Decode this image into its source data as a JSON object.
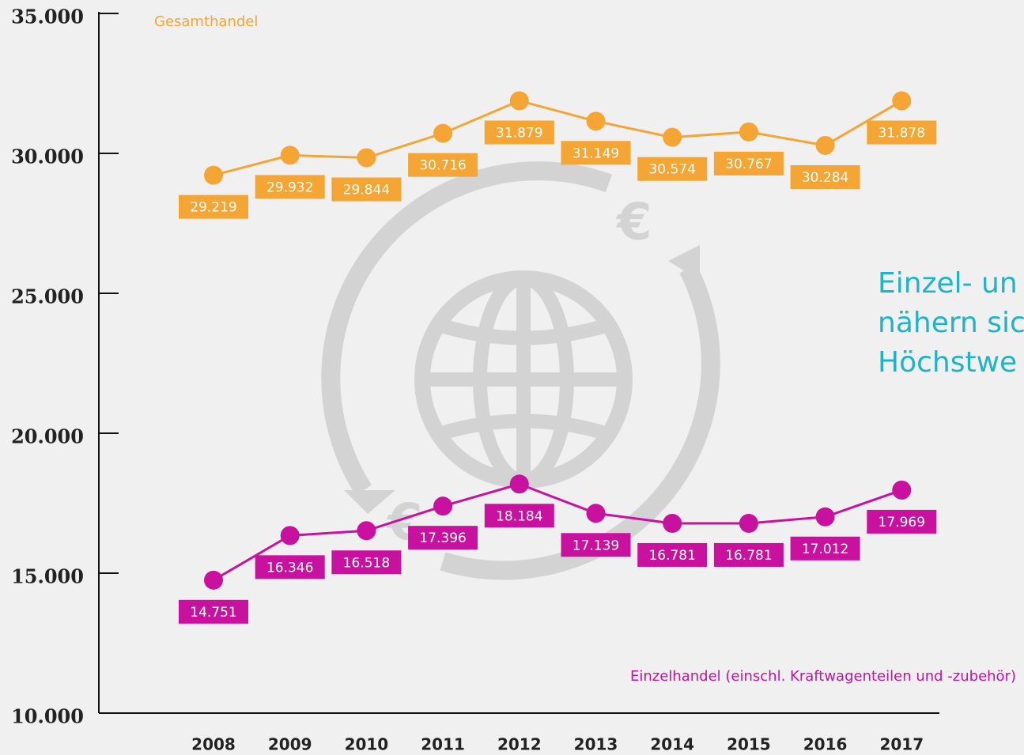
{
  "chart_data": {
    "type": "line",
    "categories": [
      "2008",
      "2009",
      "2010",
      "2011",
      "2012",
      "2013",
      "2014",
      "2015",
      "2016",
      "2017"
    ],
    "series": [
      {
        "name": "Gesamthandel",
        "color": "#f5a533",
        "values": [
          29219,
          29932,
          29844,
          30716,
          31879,
          31149,
          30574,
          30767,
          30284,
          31878
        ],
        "value_labels": [
          "29.219",
          "29.932",
          "29.844",
          "30.716",
          "31.879",
          "31.149",
          "30.574",
          "30.767",
          "30.284",
          "31.878"
        ]
      },
      {
        "name": "Einzelhandel (einschl. Kraftwagenteilen und -zubehör)",
        "color": "#c8129f",
        "values": [
          14751,
          16346,
          16518,
          17396,
          18184,
          17139,
          16781,
          16781,
          17012,
          17969
        ],
        "value_labels": [
          "14.751",
          "16.346",
          "16.518",
          "17.396",
          "18.184",
          "17.139",
          "16.781",
          "16.781",
          "17.012",
          "17.969"
        ]
      }
    ],
    "ylim": [
      10000,
      35000
    ],
    "yticks": [
      {
        "value": 10000,
        "label": "10.000"
      },
      {
        "value": 15000,
        "label": "15.000"
      },
      {
        "value": 20000,
        "label": "20.000"
      },
      {
        "value": 25000,
        "label": "25.000"
      },
      {
        "value": 30000,
        "label": "30.000"
      },
      {
        "value": 35000,
        "label": "35.000"
      }
    ],
    "annotation": [
      "Einzel- un",
      "nähern sic",
      "Höchstwe"
    ]
  }
}
